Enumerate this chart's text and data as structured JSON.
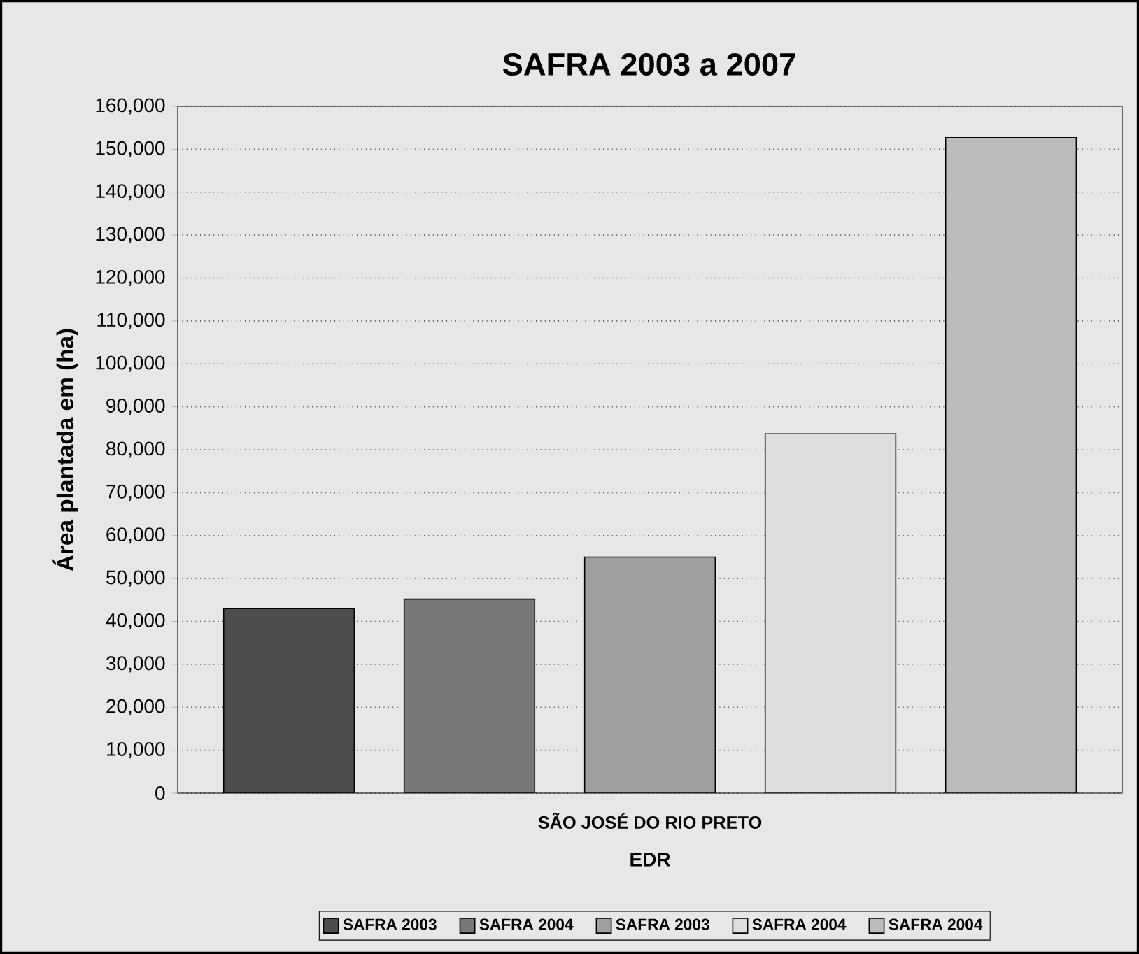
{
  "chart_data": {
    "type": "bar",
    "title": "SAFRA 2003 a 2007",
    "xlabel": "EDR",
    "ylabel": "Área plantada em (ha)",
    "categories": [
      "SÃO JOSÉ DO RIO PRETO"
    ],
    "series": [
      {
        "name": "SAFRA 2003",
        "color": "#4d4d4f",
        "values": [
          43000
        ]
      },
      {
        "name": "SAFRA 2004",
        "color": "#77787a",
        "values": [
          45200
        ]
      },
      {
        "name": "SAFRA 2003",
        "color": "#9e9fa1",
        "values": [
          55000
        ]
      },
      {
        "name": "SAFRA 2004",
        "color": "#dcdddf",
        "values": [
          83700
        ]
      },
      {
        "name": "SAFRA 2004",
        "color": "#bbbcbe",
        "values": [
          152700
        ]
      }
    ],
    "ylim": [
      0,
      160000
    ],
    "yticks": [
      0,
      {
        "value": 10000,
        "label": "10,000"
      },
      {
        "value": 20000,
        "label": "20,000"
      },
      {
        "value": 30000,
        "label": "30,000"
      },
      {
        "value": 40000,
        "label": "40,000"
      },
      {
        "value": 50000,
        "label": "50,000"
      },
      {
        "value": 60000,
        "label": "60,000"
      },
      {
        "value": 70000,
        "label": "70,000"
      },
      {
        "value": 80000,
        "label": "80,000"
      },
      {
        "value": 90000,
        "label": "90,000"
      },
      {
        "value": 100000,
        "label": "100,000"
      },
      {
        "value": 110000,
        "label": "110,000"
      },
      {
        "value": 120000,
        "label": "120,000"
      },
      {
        "value": 130000,
        "label": "130,000"
      },
      {
        "value": 140000,
        "label": "140,000"
      },
      {
        "value": 150000,
        "label": "150,000"
      },
      {
        "value": 160000,
        "label": "160,000"
      }
    ],
    "grid": "y",
    "legend": "bottom"
  }
}
